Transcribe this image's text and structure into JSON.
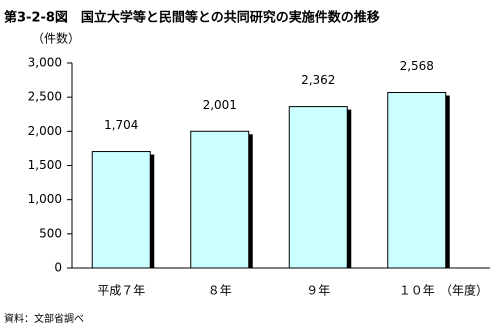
{
  "chart_data": {
    "type": "bar",
    "title": "第3-2-8図　国立大学等と民間等との共同研究の実施件数の推移",
    "y_label": "（件数）",
    "x_label": "（年度）",
    "source": "資料：文部省調べ",
    "categories": [
      "平成７年",
      "８年",
      "９年",
      "１０年"
    ],
    "values": [
      1704,
      2001,
      2362,
      2568
    ],
    "value_labels": [
      "1,704",
      "2,001",
      "2,362",
      "2,568"
    ],
    "color": "#ccffff",
    "ylim": [
      0,
      3000
    ],
    "yticks": [
      0,
      500,
      {
        "value": 1000,
        "label": "1,000"
      },
      {
        "value": 1500,
        "label": "1,500"
      },
      {
        "value": 2000,
        "label": "2,000"
      },
      {
        "value": 2500,
        "label": "2,500"
      },
      {
        "value": 3000,
        "label": "3,000"
      }
    ],
    "grid": false
  }
}
